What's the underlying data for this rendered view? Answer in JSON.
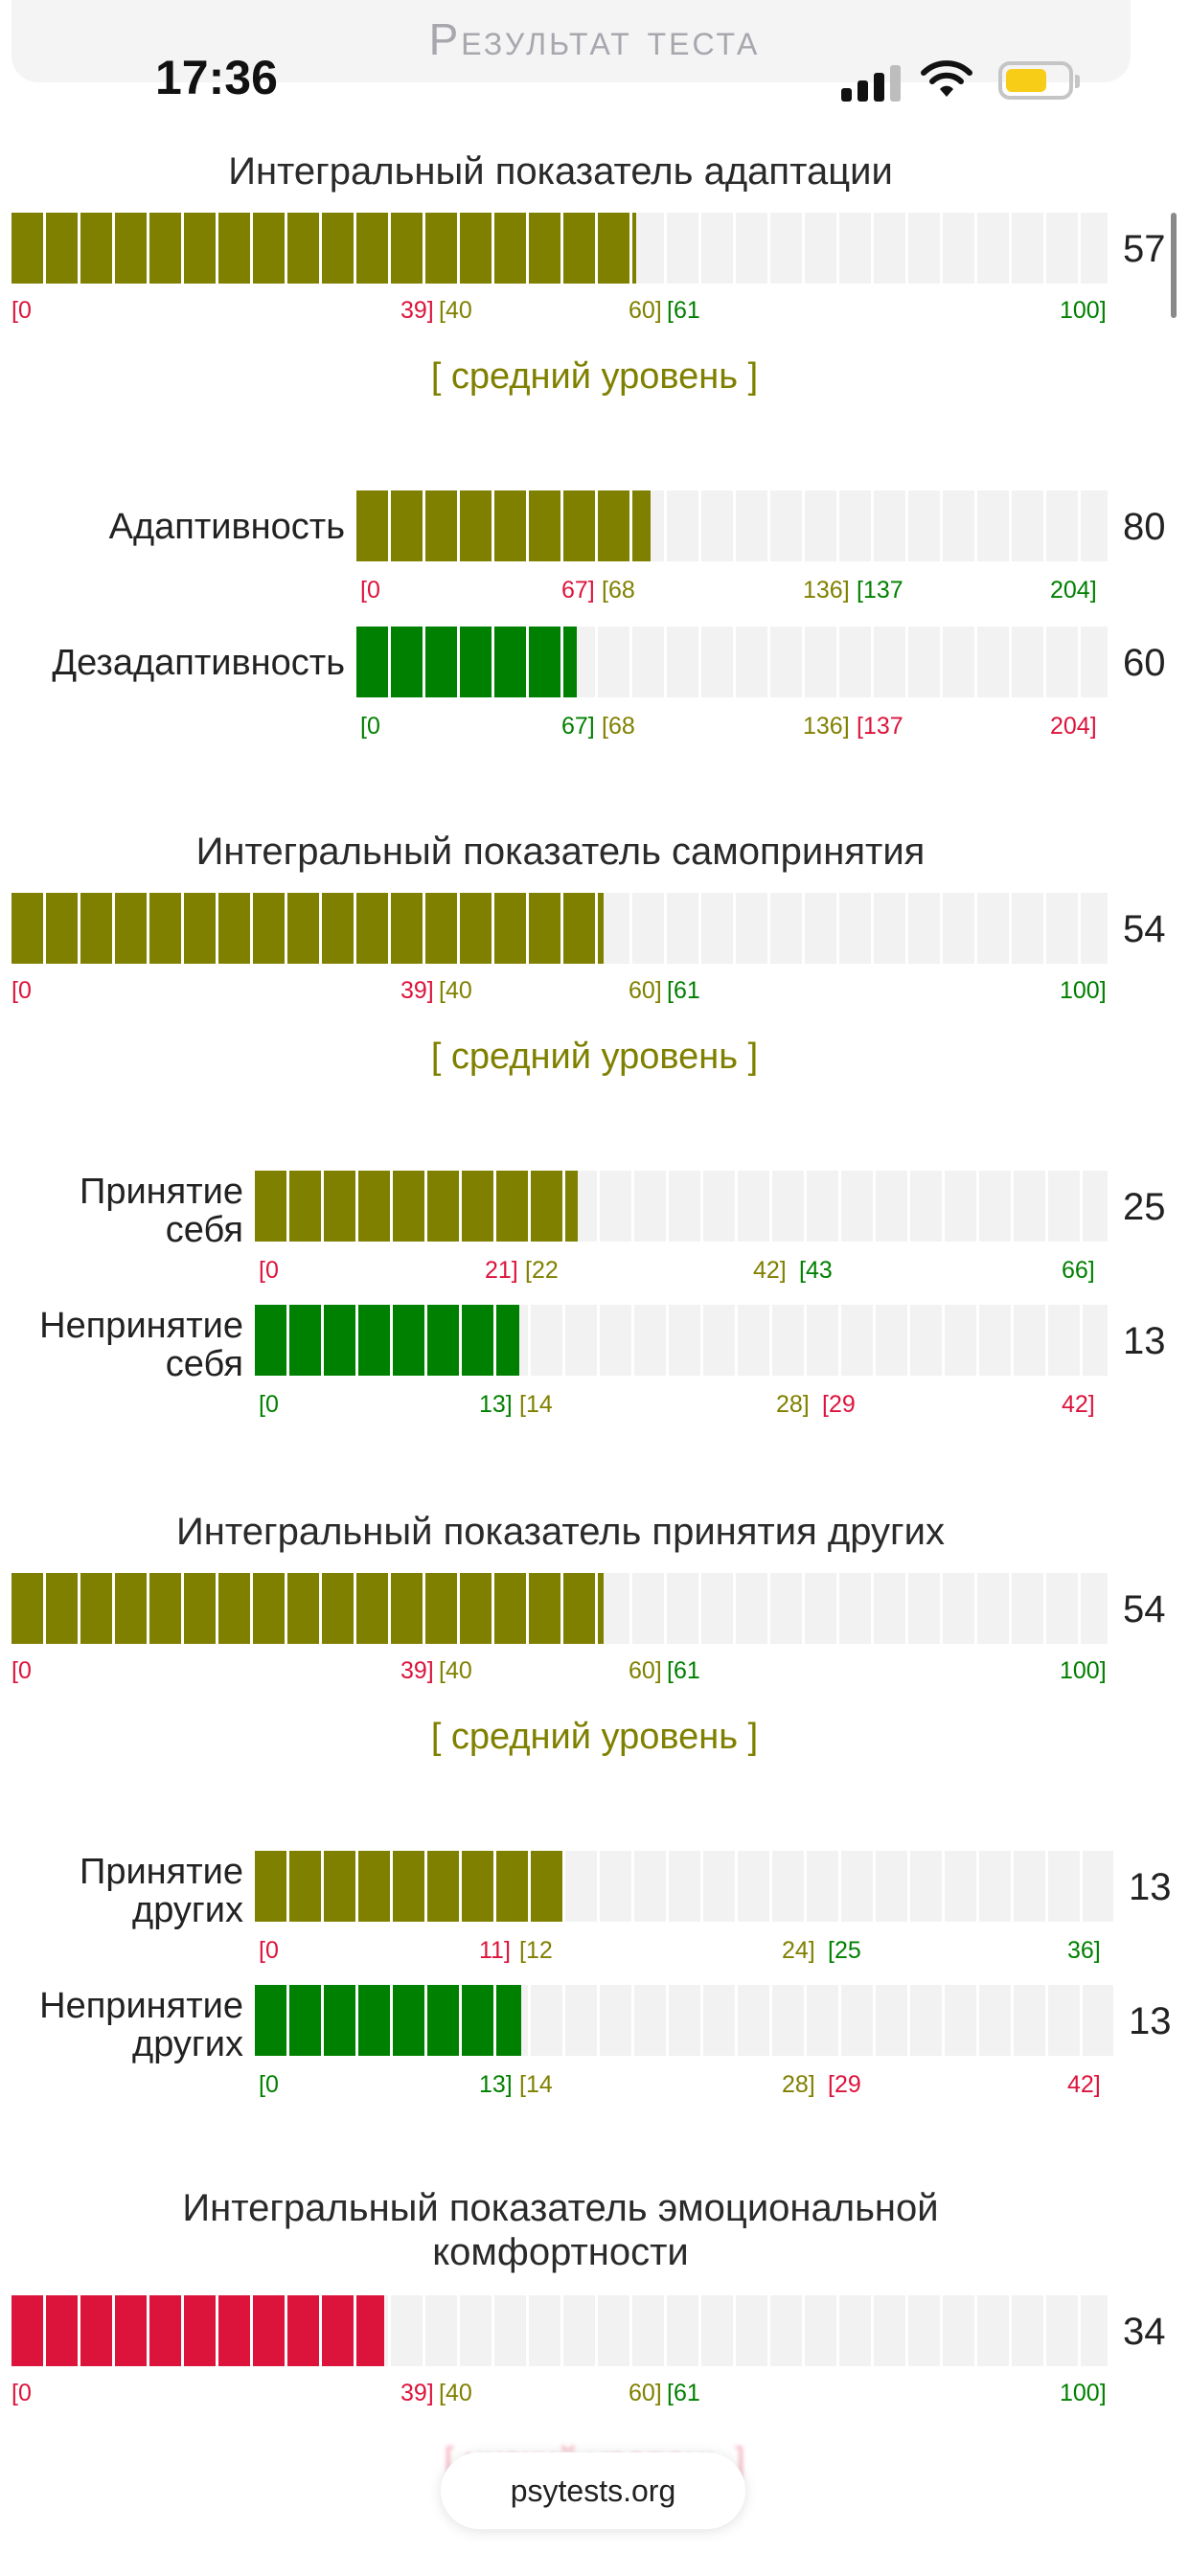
{
  "header": {
    "title": "Результат теста"
  },
  "status_bar": {
    "time": "17:36",
    "signal_icon": "cellular-signal-icon",
    "wifi_icon": "wifi-icon",
    "battery_icon": "battery-icon"
  },
  "colors": {
    "olive": "#808000",
    "green": "#008000",
    "red": "#dc143c"
  },
  "sections": [
    {
      "title": "Интегральный показатель адаптации",
      "value": "57",
      "fill_fraction": 0.57,
      "fill_color": "#808000",
      "ticks": [
        {
          "text": "[0",
          "color": "#dc143c"
        },
        {
          "text": "39]",
          "color": "#dc143c"
        },
        {
          "text": "[40",
          "color": "#808000"
        },
        {
          "text": "60]",
          "color": "#808000"
        },
        {
          "text": "[61",
          "color": "#008000"
        },
        {
          "text": "100]",
          "color": "#008000"
        }
      ],
      "level": "[ средний уровень ]",
      "subscales": [
        {
          "label": "Адаптивность",
          "value": "80",
          "fill_fraction": 0.392,
          "fill_color": "#808000",
          "ticks": [
            {
              "text": "[0",
              "color": "#dc143c"
            },
            {
              "text": "67]",
              "color": "#dc143c"
            },
            {
              "text": "[68",
              "color": "#808000"
            },
            {
              "text": "136]",
              "color": "#808000"
            },
            {
              "text": "[137",
              "color": "#008000"
            },
            {
              "text": "204]",
              "color": "#008000"
            }
          ]
        },
        {
          "label": "Дезадаптивность",
          "value": "60",
          "fill_fraction": 0.294,
          "fill_color": "#008000",
          "ticks": [
            {
              "text": "[0",
              "color": "#008000"
            },
            {
              "text": "67]",
              "color": "#008000"
            },
            {
              "text": "[68",
              "color": "#808000"
            },
            {
              "text": "136]",
              "color": "#808000"
            },
            {
              "text": "[137",
              "color": "#dc143c"
            },
            {
              "text": "204]",
              "color": "#dc143c"
            }
          ]
        }
      ]
    },
    {
      "title": "Интегральный показатель самопринятия",
      "value": "54",
      "fill_fraction": 0.54,
      "fill_color": "#808000",
      "ticks": [
        {
          "text": "[0",
          "color": "#dc143c"
        },
        {
          "text": "39]",
          "color": "#dc143c"
        },
        {
          "text": "[40",
          "color": "#808000"
        },
        {
          "text": "60]",
          "color": "#808000"
        },
        {
          "text": "[61",
          "color": "#008000"
        },
        {
          "text": "100]",
          "color": "#008000"
        }
      ],
      "level": "[ средний уровень ]",
      "subscales": [
        {
          "label_line1": "Принятие",
          "label_line2": "себя",
          "value": "25",
          "fill_fraction": 0.379,
          "fill_color": "#808000",
          "ticks": [
            {
              "text": "[0",
              "color": "#dc143c"
            },
            {
              "text": "21]",
              "color": "#dc143c"
            },
            {
              "text": "[22",
              "color": "#808000"
            },
            {
              "text": "42]",
              "color": "#808000"
            },
            {
              "text": "[43",
              "color": "#008000"
            },
            {
              "text": "66]",
              "color": "#008000"
            }
          ]
        },
        {
          "label_line1": "Непринятие",
          "label_line2": "себя",
          "value": "13",
          "fill_fraction": 0.31,
          "fill_color": "#008000",
          "ticks": [
            {
              "text": "[0",
              "color": "#008000"
            },
            {
              "text": "13]",
              "color": "#008000"
            },
            {
              "text": "[14",
              "color": "#808000"
            },
            {
              "text": "28]",
              "color": "#808000"
            },
            {
              "text": "[29",
              "color": "#dc143c"
            },
            {
              "text": "42]",
              "color": "#dc143c"
            }
          ]
        }
      ]
    },
    {
      "title": "Интегральный показатель принятия других",
      "value": "54",
      "fill_fraction": 0.54,
      "fill_color": "#808000",
      "ticks": [
        {
          "text": "[0",
          "color": "#dc143c"
        },
        {
          "text": "39]",
          "color": "#dc143c"
        },
        {
          "text": "[40",
          "color": "#808000"
        },
        {
          "text": "60]",
          "color": "#808000"
        },
        {
          "text": "[61",
          "color": "#008000"
        },
        {
          "text": "100]",
          "color": "#008000"
        }
      ],
      "level": "[ средний уровень ]",
      "subscales": [
        {
          "label_line1": "Принятие",
          "label_line2": "других",
          "value": "13",
          "fill_fraction": 0.361,
          "fill_color": "#808000",
          "ticks": [
            {
              "text": "[0",
              "color": "#dc143c"
            },
            {
              "text": "11]",
              "color": "#dc143c"
            },
            {
              "text": "[12",
              "color": "#808000"
            },
            {
              "text": "24]",
              "color": "#808000"
            },
            {
              "text": "[25",
              "color": "#008000"
            },
            {
              "text": "36]",
              "color": "#008000"
            }
          ]
        },
        {
          "label_line1": "Непринятие",
          "label_line2": "других",
          "value": "13",
          "fill_fraction": 0.31,
          "fill_color": "#008000",
          "ticks": [
            {
              "text": "[0",
              "color": "#008000"
            },
            {
              "text": "13]",
              "color": "#008000"
            },
            {
              "text": "[14",
              "color": "#808000"
            },
            {
              "text": "28]",
              "color": "#808000"
            },
            {
              "text": "[29",
              "color": "#dc143c"
            },
            {
              "text": "42]",
              "color": "#dc143c"
            }
          ]
        }
      ]
    },
    {
      "title_line1": "Интегральный показатель эмоциональной",
      "title_line2": "комфортности",
      "value": "34",
      "fill_fraction": 0.34,
      "fill_color": "#dc143c",
      "ticks": [
        {
          "text": "[0",
          "color": "#dc143c"
        },
        {
          "text": "39]",
          "color": "#dc143c"
        },
        {
          "text": "[40",
          "color": "#808000"
        },
        {
          "text": "60]",
          "color": "#808000"
        },
        {
          "text": "[61",
          "color": "#008000"
        },
        {
          "text": "100]",
          "color": "#008000"
        }
      ],
      "level": "[ низкий уровень ]"
    }
  ],
  "footer": {
    "site": "psytests.org"
  }
}
